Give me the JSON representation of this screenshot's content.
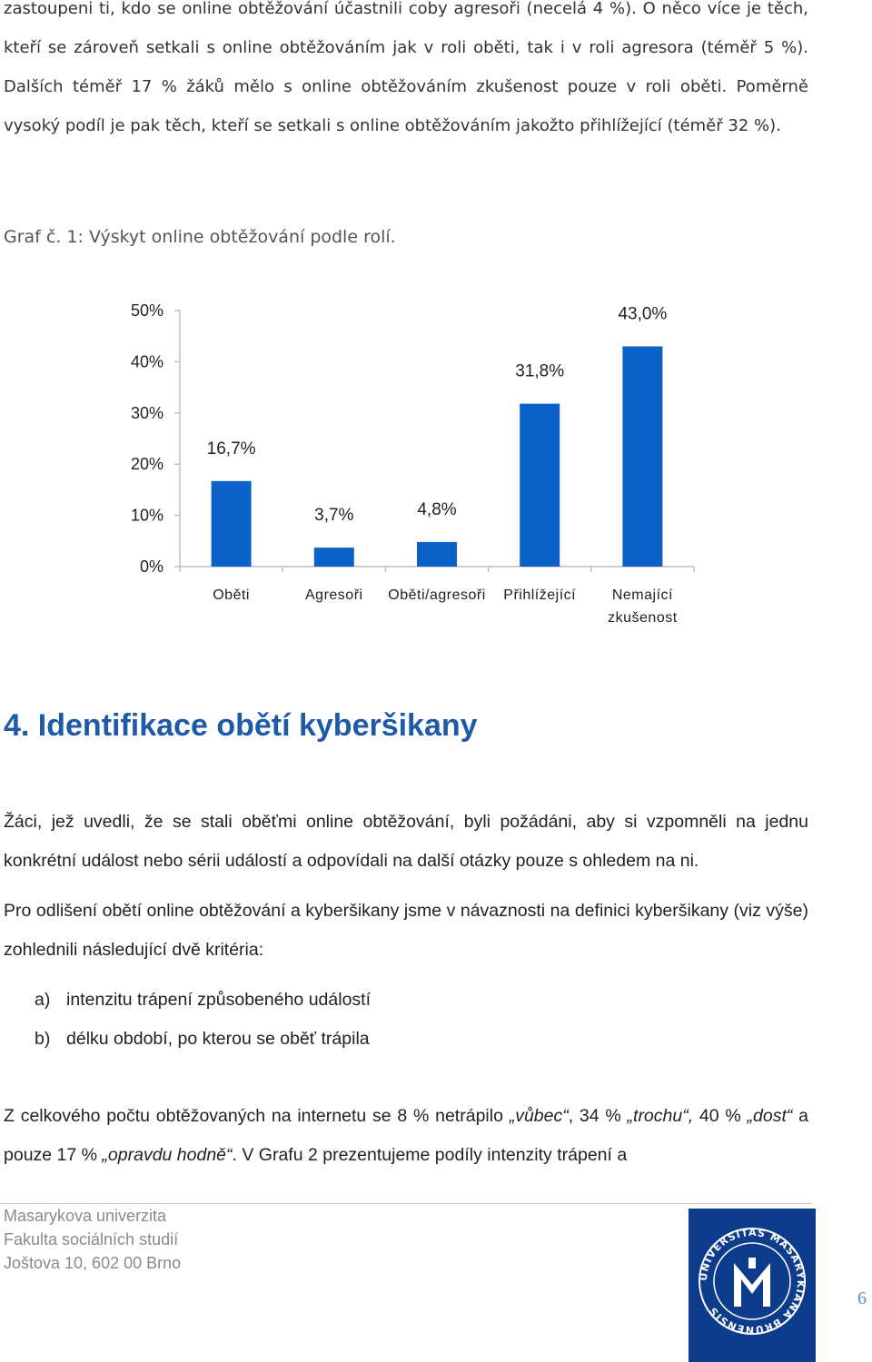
{
  "body": {
    "intro_paragraph": "zastoupeni ti, kdo se online obtěžování účastnili coby agresoři (necelá 4 %). O něco více je těch, kteří se zároveň setkali s online obtěžováním jak v roli oběti, tak i v roli agresora (téměř 5 %). Dalších téměř 17 % žáků mělo s online obtěžováním zkušenost pouze v roli oběti. Poměrně vysoký podíl je pak těch, kteří se setkali s online obtěžováním jakožto přihlížející (téměř 32 %).",
    "caption": "Graf č. 1: Výskyt online obtěžování podle rolí.",
    "heading": "4. Identifikace obětí kyberšikany",
    "para1": "Žáci, jež uvedli, že se stali oběťmi online obtěžování, byli požádáni, aby si vzpomněli na jednu konkrétní událost nebo sérii událostí a odpovídali na další otázky pouze s ohledem na ni.",
    "para2": "Pro odlišení obětí online obtěžování a kyberšikany jsme v návaznosti na definici kyberšikany (viz výše) zohlednili následující dvě kritéria:",
    "list": [
      {
        "marker": "a)",
        "text": "intenzitu trápení způsobeného událostí"
      },
      {
        "marker": "b)",
        "text": "délku období, po kterou se oběť trápila"
      }
    ],
    "para3": {
      "t1": "Z celkového počtu obtěžovaných na internetu se 8 % netrápilo ",
      "e1": "„vůbec“",
      "t2": ", 34 % ",
      "e2": "„trochu“,",
      "t3": " 40 % ",
      "e3": "„dost“",
      "t4": " a pouze 17 % ",
      "e4": "„opravdu hodně“",
      "t5": ". V Grafu 2 prezentujeme podíly intenzity trápení a"
    }
  },
  "chart_data": {
    "type": "bar",
    "categories": [
      "Oběti",
      "Agresoři",
      "Oběti/agresoři",
      "Přihlížející",
      "Nemající zkušenost"
    ],
    "category_lines": [
      [
        "Oběti"
      ],
      [
        "Agresoři"
      ],
      [
        "Oběti/agresoři"
      ],
      [
        "Přihlížející"
      ],
      [
        "Nemající",
        "zkušenost"
      ]
    ],
    "values": [
      16.7,
      3.7,
      4.8,
      31.8,
      43.0
    ],
    "value_labels": [
      "16,7%",
      "3,7%",
      "4,8%",
      "31,8%",
      "43,0%"
    ],
    "y_ticks": [
      "0%",
      "10%",
      "20%",
      "30%",
      "40%",
      "50%"
    ],
    "ylim": [
      0,
      50
    ],
    "bar_color": "#0a62c9",
    "grid": false,
    "legend": "none"
  },
  "footer": {
    "lines": [
      "Masarykova univerzita",
      "Fakulta sociálních studií",
      "Joštova 10, 602 00 Brno"
    ],
    "page_number": "6",
    "logo_text": "UNIVERSITAS MASARYKIANA BRUNENSIS",
    "logo_color": "#0e3c8c"
  }
}
